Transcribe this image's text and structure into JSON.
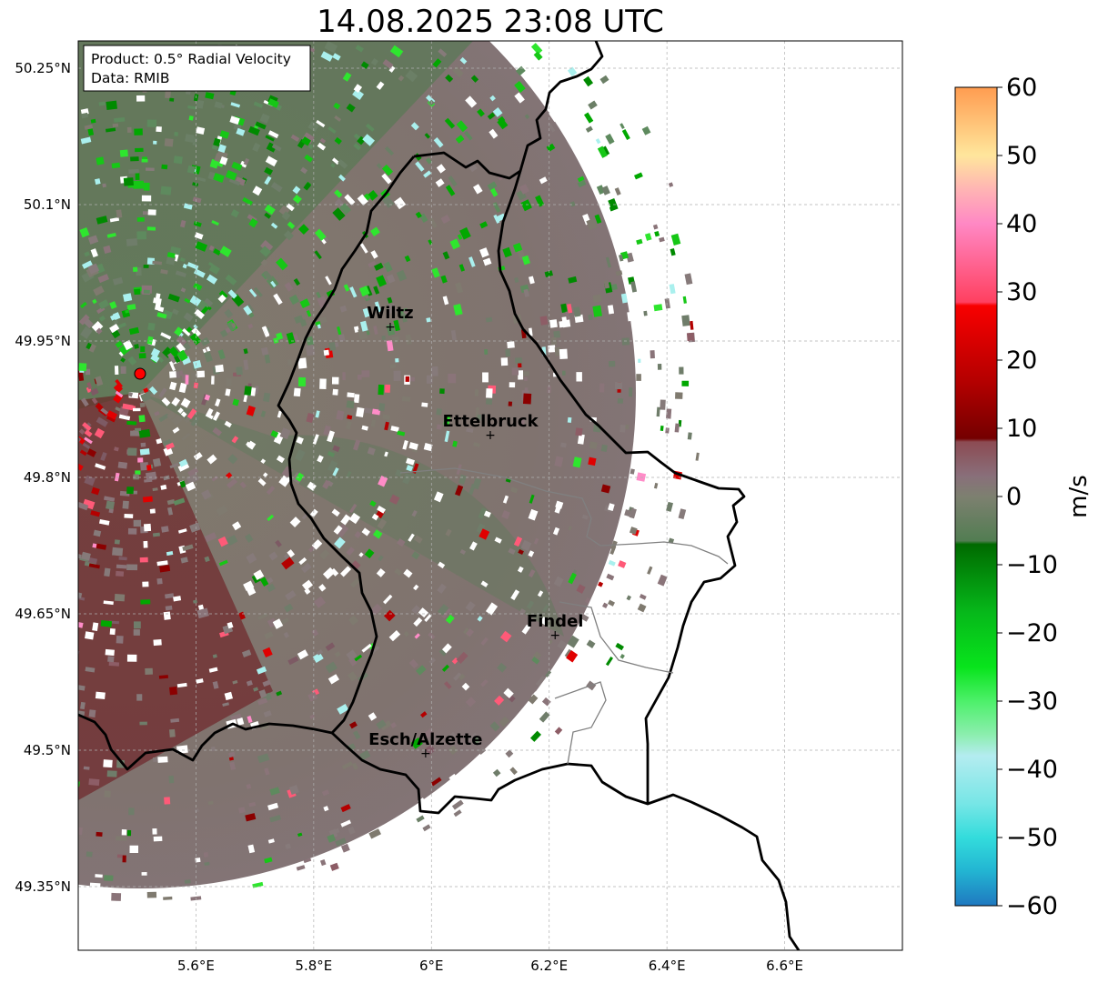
{
  "title": "14.08.2025 23:08 UTC",
  "info_box": {
    "product": "Product: 0.5° Radial Velocity",
    "data": "Data: RMIB"
  },
  "map": {
    "lon_range": [
      5.4,
      6.8
    ],
    "lat_range": [
      49.28,
      50.28
    ],
    "lon_ticks": [
      {
        "value": 5.6,
        "label": "5.6°E"
      },
      {
        "value": 5.8,
        "label": "5.8°E"
      },
      {
        "value": 6.0,
        "label": "6°E"
      },
      {
        "value": 6.2,
        "label": "6.2°E"
      },
      {
        "value": 6.4,
        "label": "6.4°E"
      },
      {
        "value": 6.6,
        "label": "6.6°E"
      }
    ],
    "lat_ticks": [
      {
        "value": 50.25,
        "label": "50.25°N"
      },
      {
        "value": 50.1,
        "label": "50.1°N"
      },
      {
        "value": 49.95,
        "label": "49.95°N"
      },
      {
        "value": 49.8,
        "label": "49.8°N"
      },
      {
        "value": 49.65,
        "label": "49.65°N"
      },
      {
        "value": 49.5,
        "label": "49.5°N"
      },
      {
        "value": 49.35,
        "label": "49.35°N"
      }
    ],
    "grid": true,
    "radar_site": {
      "lon": 5.505,
      "lat": 49.914
    },
    "cities": [
      {
        "name": "Wiltz",
        "lon": 5.93,
        "lat": 49.966
      },
      {
        "name": "Ettelbruck",
        "lon": 6.1,
        "lat": 49.847
      },
      {
        "name": "Findel",
        "lon": 6.21,
        "lat": 49.627
      },
      {
        "name": "Esch/Alzette",
        "lon": 5.99,
        "lat": 49.497
      }
    ]
  },
  "colorbar": {
    "label": "m/s",
    "range": [
      -60,
      60
    ],
    "ticks": [
      {
        "value": 60,
        "label": "60"
      },
      {
        "value": 50,
        "label": "50"
      },
      {
        "value": 40,
        "label": "40"
      },
      {
        "value": 30,
        "label": "30"
      },
      {
        "value": 20,
        "label": "20"
      },
      {
        "value": 10,
        "label": "10"
      },
      {
        "value": 0,
        "label": "0"
      },
      {
        "value": -10,
        "label": "−10"
      },
      {
        "value": -20,
        "label": "−20"
      },
      {
        "value": -30,
        "label": "−30"
      },
      {
        "value": -40,
        "label": "−40"
      },
      {
        "value": -50,
        "label": "−50"
      },
      {
        "value": -60,
        "label": "−60"
      }
    ],
    "color_stops": [
      {
        "v": -60,
        "c": "#1f78c0"
      },
      {
        "v": -55,
        "c": "#22b4d2"
      },
      {
        "v": -50,
        "c": "#33dcdc"
      },
      {
        "v": -45,
        "c": "#77e6e6"
      },
      {
        "v": -38,
        "c": "#b4ecf0"
      },
      {
        "v": -35,
        "c": "#8deeb0"
      },
      {
        "v": -30,
        "c": "#4df06a"
      },
      {
        "v": -25,
        "c": "#08e41c"
      },
      {
        "v": -17,
        "c": "#06b81a"
      },
      {
        "v": -7,
        "c": "#006a00"
      },
      {
        "v": -6.5,
        "c": "#527d52"
      },
      {
        "v": 0,
        "c": "#7d8070"
      },
      {
        "v": 3,
        "c": "#896f7a"
      },
      {
        "v": 8,
        "c": "#8c4b53"
      },
      {
        "v": 8.5,
        "c": "#740000"
      },
      {
        "v": 17,
        "c": "#b50000"
      },
      {
        "v": 28,
        "c": "#f80000"
      },
      {
        "v": 28.5,
        "c": "#ff4060"
      },
      {
        "v": 40,
        "c": "#ff88c4"
      },
      {
        "v": 45,
        "c": "#ffb4b4"
      },
      {
        "v": 50,
        "c": "#ffe69c"
      },
      {
        "v": 60,
        "c": "#ff9c50"
      }
    ]
  }
}
